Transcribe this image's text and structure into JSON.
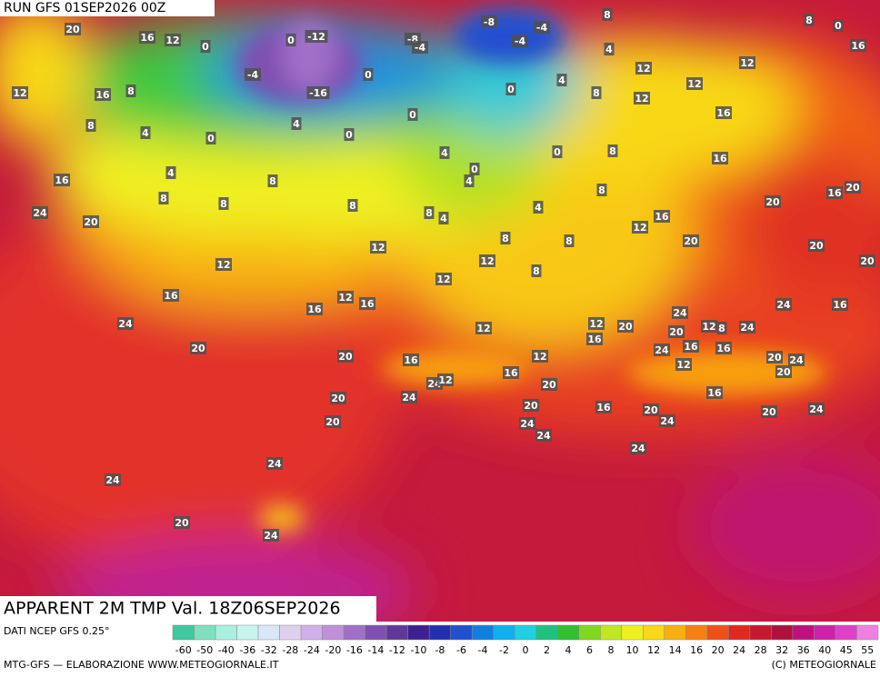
{
  "header": {
    "run": "RUN GFS 01SEP2026 00Z",
    "title": "APPARENT 2M TMP Val. 18Z06SEP2026"
  },
  "footer": {
    "source": "DATI NCEP GFS 0.25°",
    "credit": "MTG-GFS — ELABORAZIONE WWW.METEOGIORNALE.IT",
    "copyright": "(C) METEOGIORNALE"
  },
  "scale": {
    "labels": [
      -60,
      -50,
      -40,
      -36,
      -32,
      -28,
      -24,
      -20,
      -16,
      -14,
      -12,
      -10,
      -8,
      -6,
      -4,
      -2,
      0,
      2,
      4,
      6,
      8,
      10,
      12,
      14,
      16,
      20,
      24,
      28,
      32,
      36,
      40,
      45,
      55
    ],
    "colors": [
      "#3fc9a0",
      "#7fe0c0",
      "#a8f0e0",
      "#c8f4f0",
      "#d8e8f8",
      "#e0d0f0",
      "#d0b0e8",
      "#c090d8",
      "#a070c8",
      "#8050b0",
      "#603898",
      "#402090",
      "#2030b0",
      "#2050d0",
      "#1080e0",
      "#10b0f0",
      "#20d0e0",
      "#20c080",
      "#30c030",
      "#80d820",
      "#c0e820",
      "#f0f020",
      "#f8d818",
      "#f8b010",
      "#f88010",
      "#f05018",
      "#e02820",
      "#c81830",
      "#b01040",
      "#c01080",
      "#d020a8",
      "#e040c8",
      "#f080e0"
    ]
  },
  "map_labels": [
    20,
    16,
    12,
    0,
    0,
    -12,
    -4,
    -16,
    0,
    -8,
    -4,
    -8,
    -4,
    -4,
    8,
    4,
    12,
    12,
    8,
    0,
    16,
    12,
    16,
    8,
    8,
    4,
    0,
    4,
    0,
    0,
    0,
    4,
    8,
    12,
    12,
    16,
    16,
    4,
    8,
    8,
    8,
    8,
    4,
    0,
    4,
    0,
    8,
    8,
    4,
    24,
    20,
    8,
    4,
    8,
    8,
    12,
    16,
    20,
    16,
    20,
    16,
    20,
    20,
    20,
    12,
    12,
    12,
    8,
    12,
    16,
    12,
    16,
    16,
    24,
    24,
    24,
    16,
    12,
    20,
    12,
    16,
    20,
    12,
    8,
    24,
    24,
    16,
    16,
    20,
    20,
    16,
    12,
    20,
    24,
    20,
    12,
    24,
    12,
    16,
    20,
    20,
    24,
    16,
    20,
    16,
    20,
    24,
    20,
    24,
    20,
    24,
    24,
    24,
    24,
    24,
    20,
    24
  ]
}
